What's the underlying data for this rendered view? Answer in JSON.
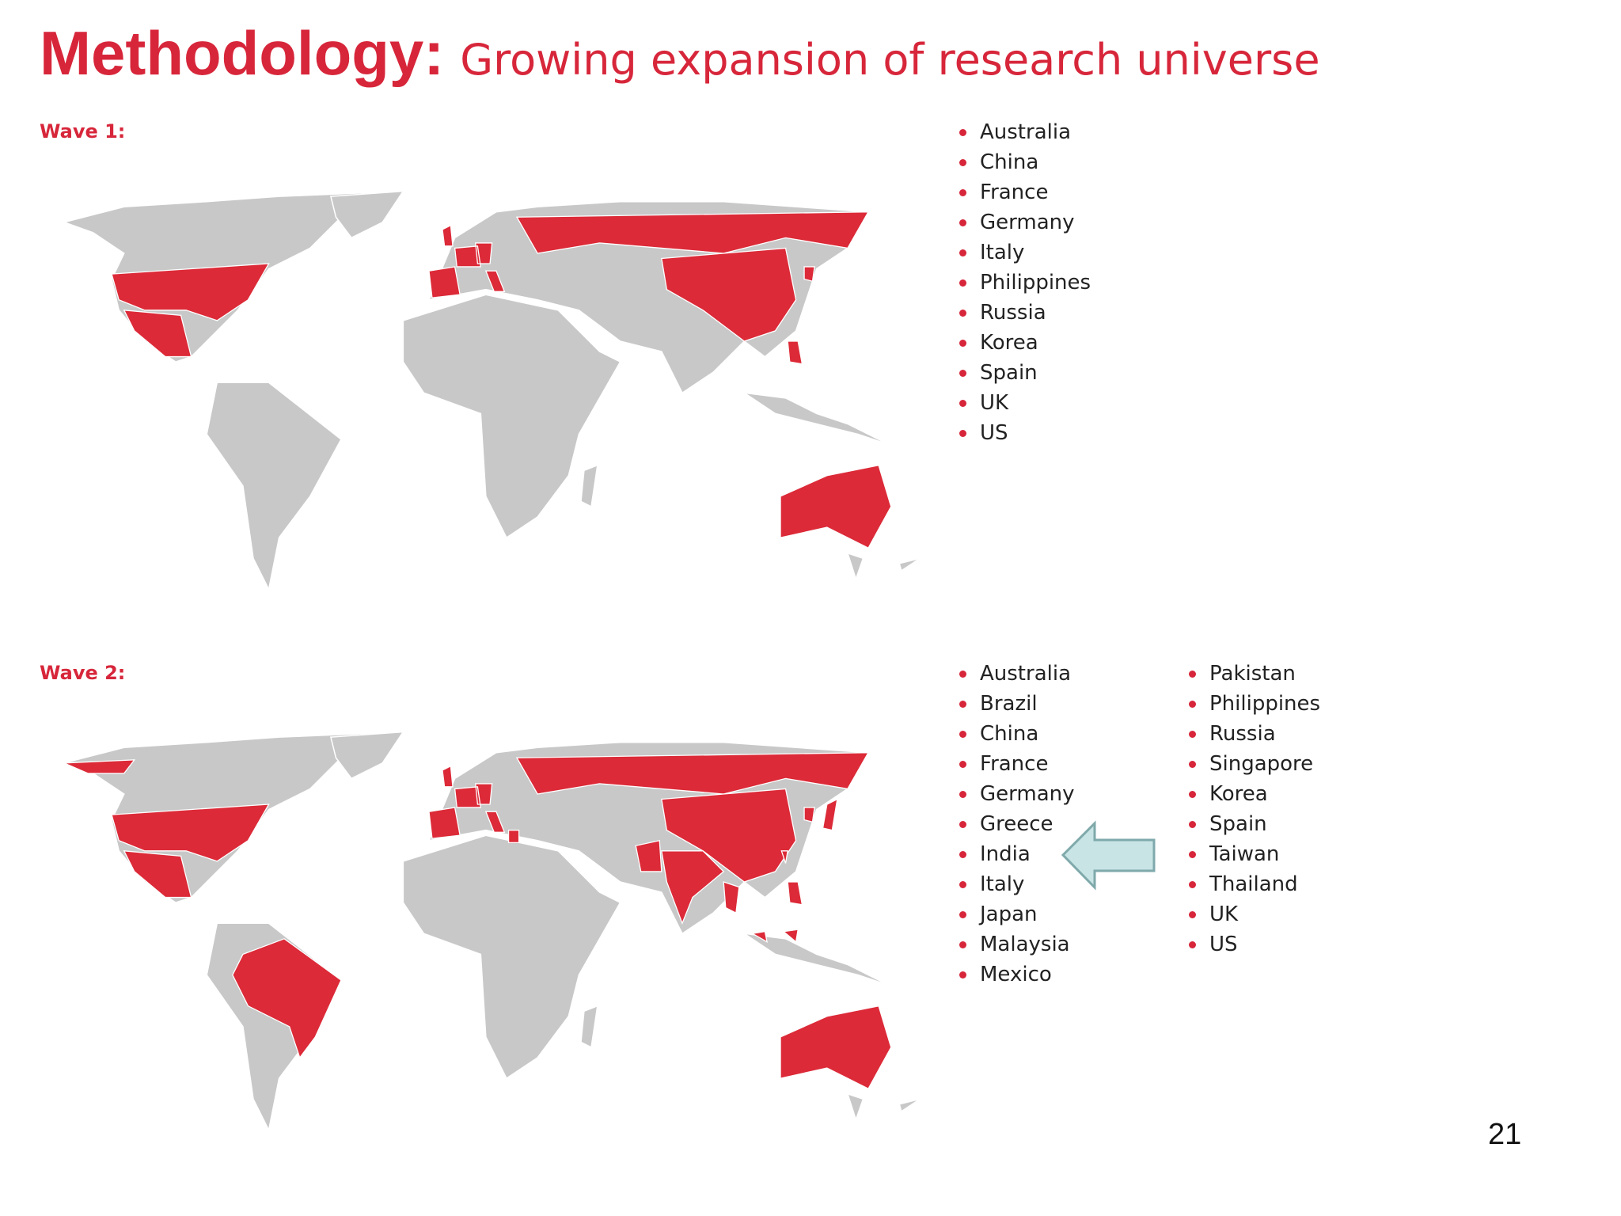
{
  "header": {
    "title": "Methodology:",
    "subtitle": "Growing expansion of research universe"
  },
  "waves": [
    {
      "label": "Wave 1:",
      "columns": [
        [
          "Australia",
          "China",
          "France",
          "Germany",
          "Italy",
          "Philippines",
          "Russia",
          "Korea",
          "Spain",
          "UK",
          "US"
        ]
      ]
    },
    {
      "label": "Wave 2:",
      "columns": [
        [
          "Australia",
          "Brazil",
          "China",
          "France",
          "Germany",
          "Greece",
          "India",
          "Italy",
          "Japan",
          "Malaysia",
          "Mexico"
        ],
        [
          "Pakistan",
          "Philippines",
          "Russia",
          "Singapore",
          "Korea",
          "Spain",
          "Taiwan",
          "Thailand",
          "UK",
          "US"
        ]
      ]
    }
  ],
  "page_number": "21"
}
